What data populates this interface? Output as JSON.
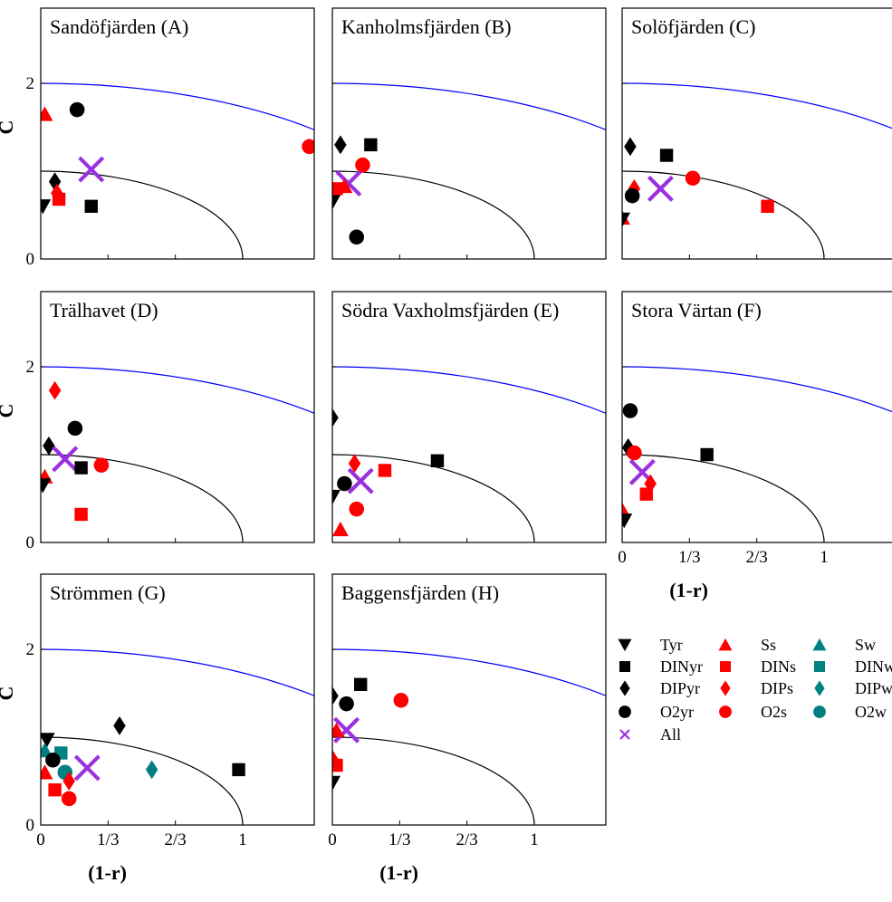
{
  "chart_data": {
    "type": "scatter",
    "axis": {
      "xlabel": "(1-r)",
      "ylabel": "C",
      "xlim": [
        0,
        1.45
      ],
      "ylim": [
        0,
        2.7
      ],
      "xticks": [
        0,
        0.3333,
        0.6667,
        1
      ],
      "xtick_labels": [
        "0",
        "1/3",
        "2/3",
        "1"
      ],
      "yticks": [
        0,
        2
      ],
      "ytick_labels": [
        "0",
        "2"
      ],
      "reference_arcs": [
        {
          "radius": 1,
          "color": "#000000"
        },
        {
          "radius": 2,
          "color": "#0000ff"
        }
      ]
    },
    "legend": {
      "placement": "bottom-right",
      "entries": [
        {
          "key": "Tyr",
          "label": "Tyr",
          "marker": "triangle-down",
          "color": "#000000"
        },
        {
          "key": "DINyr",
          "label": "DINyr",
          "marker": "square",
          "color": "#000000"
        },
        {
          "key": "DIPyr",
          "label": "DIPyr",
          "marker": "diamond",
          "color": "#000000"
        },
        {
          "key": "O2yr",
          "label": "O2yr",
          "marker": "circle",
          "color": "#000000"
        },
        {
          "key": "All",
          "label": "All",
          "marker": "cross",
          "color": "#9b30e0"
        },
        {
          "key": "Ss",
          "label": "Ss",
          "marker": "triangle-up",
          "color": "#ff0000"
        },
        {
          "key": "DINs",
          "label": "DINs",
          "marker": "square",
          "color": "#ff0000"
        },
        {
          "key": "DIPs",
          "label": "DIPs",
          "marker": "diamond",
          "color": "#ff0000"
        },
        {
          "key": "O2s",
          "label": "O2s",
          "marker": "circle",
          "color": "#ff0000"
        },
        {
          "key": "Sw",
          "label": "Sw",
          "marker": "triangle-up",
          "color": "#008080"
        },
        {
          "key": "DINw",
          "label": "DINw",
          "marker": "square",
          "color": "#008080"
        },
        {
          "key": "DIPw",
          "label": "DIPw",
          "marker": "diamond",
          "color": "#008080"
        },
        {
          "key": "O2w",
          "label": "O2w",
          "marker": "circle",
          "color": "#008080"
        }
      ]
    },
    "panels": [
      {
        "title": "Sandöfjärden (A)",
        "points": [
          {
            "series": "Ss",
            "x": 0.02,
            "y": 1.65
          },
          {
            "series": "O2yr",
            "x": 0.18,
            "y": 1.7
          },
          {
            "series": "O2s",
            "x": 1.33,
            "y": 1.28
          },
          {
            "series": "All",
            "x": 0.25,
            "y": 1.02
          },
          {
            "series": "DIPyr",
            "x": 0.07,
            "y": 0.88
          },
          {
            "series": "DIPs",
            "x": 0.08,
            "y": 0.75
          },
          {
            "series": "DINs",
            "x": 0.09,
            "y": 0.68
          },
          {
            "series": "DINyr",
            "x": 0.25,
            "y": 0.6
          },
          {
            "series": "Tyr",
            "x": 0.01,
            "y": 0.6
          }
        ]
      },
      {
        "title": "Kanholmsfjärden (B)",
        "points": [
          {
            "series": "DIPyr",
            "x": 0.04,
            "y": 1.3
          },
          {
            "series": "DINyr",
            "x": 0.19,
            "y": 1.3
          },
          {
            "series": "O2s",
            "x": 0.15,
            "y": 1.07
          },
          {
            "series": "All",
            "x": 0.08,
            "y": 0.86
          },
          {
            "series": "DINs",
            "x": 0.02,
            "y": 0.8
          },
          {
            "series": "Ss",
            "x": 0.06,
            "y": 0.83
          },
          {
            "series": "Tyr",
            "x": 0.0,
            "y": 0.65
          },
          {
            "series": "O2yr",
            "x": 0.12,
            "y": 0.25
          }
        ]
      },
      {
        "title": "Solöfjärden (C)",
        "points": [
          {
            "series": "DIPyr",
            "x": 0.04,
            "y": 1.28
          },
          {
            "series": "DINyr",
            "x": 0.22,
            "y": 1.18
          },
          {
            "series": "O2s",
            "x": 0.35,
            "y": 0.92
          },
          {
            "series": "All",
            "x": 0.19,
            "y": 0.8
          },
          {
            "series": "DIPs",
            "x": 0.06,
            "y": 0.8
          },
          {
            "series": "O2yr",
            "x": 0.05,
            "y": 0.72
          },
          {
            "series": "DINs",
            "x": 0.72,
            "y": 0.6
          },
          {
            "series": "Ss",
            "x": 0.0,
            "y": 0.47
          },
          {
            "series": "Tyr",
            "x": 0.0,
            "y": 0.45
          }
        ]
      },
      {
        "title": "Trälhavet (D)",
        "points": [
          {
            "series": "DIPs",
            "x": 0.07,
            "y": 1.73
          },
          {
            "series": "O2yr",
            "x": 0.17,
            "y": 1.3
          },
          {
            "series": "DIPyr",
            "x": 0.04,
            "y": 1.1
          },
          {
            "series": "All",
            "x": 0.12,
            "y": 0.95
          },
          {
            "series": "O2s",
            "x": 0.3,
            "y": 0.88
          },
          {
            "series": "DINyr",
            "x": 0.2,
            "y": 0.85
          },
          {
            "series": "Ss",
            "x": 0.02,
            "y": 0.75
          },
          {
            "series": "Tyr",
            "x": 0.01,
            "y": 0.65
          },
          {
            "series": "DINs",
            "x": 0.2,
            "y": 0.32
          }
        ]
      },
      {
        "title": "Södra Vaxholmsfjärden (E)",
        "points": [
          {
            "series": "DIPyr",
            "x": 0.0,
            "y": 1.42
          },
          {
            "series": "DINyr",
            "x": 0.52,
            "y": 0.93
          },
          {
            "series": "DIPs",
            "x": 0.11,
            "y": 0.9
          },
          {
            "series": "DINs",
            "x": 0.26,
            "y": 0.82
          },
          {
            "series": "All",
            "x": 0.14,
            "y": 0.7
          },
          {
            "series": "O2yr",
            "x": 0.06,
            "y": 0.67
          },
          {
            "series": "Tyr",
            "x": 0.0,
            "y": 0.52
          },
          {
            "series": "O2s",
            "x": 0.12,
            "y": 0.38
          },
          {
            "series": "Ss",
            "x": 0.04,
            "y": 0.15
          }
        ]
      },
      {
        "title": "Stora Värtan (F)",
        "points": [
          {
            "series": "O2yr",
            "x": 0.04,
            "y": 1.5
          },
          {
            "series": "DIPyr",
            "x": 0.03,
            "y": 1.08
          },
          {
            "series": "DINyr",
            "x": 0.42,
            "y": 1.0
          },
          {
            "series": "O2s",
            "x": 0.06,
            "y": 1.02
          },
          {
            "series": "All",
            "x": 0.1,
            "y": 0.8
          },
          {
            "series": "DIPs",
            "x": 0.14,
            "y": 0.67
          },
          {
            "series": "DINs",
            "x": 0.12,
            "y": 0.55
          },
          {
            "series": "Ss",
            "x": 0.0,
            "y": 0.37
          },
          {
            "series": "Tyr",
            "x": 0.01,
            "y": 0.25
          }
        ]
      },
      {
        "title": "Strömmen (G)",
        "points": [
          {
            "series": "DIPyr",
            "x": 0.39,
            "y": 1.13
          },
          {
            "series": "Tyr",
            "x": 0.03,
            "y": 0.97
          },
          {
            "series": "Sw",
            "x": 0.02,
            "y": 0.85
          },
          {
            "series": "DINw",
            "x": 0.1,
            "y": 0.82
          },
          {
            "series": "O2yr",
            "x": 0.06,
            "y": 0.74
          },
          {
            "series": "All",
            "x": 0.23,
            "y": 0.65
          },
          {
            "series": "DIPw",
            "x": 0.55,
            "y": 0.63
          },
          {
            "series": "DINyr",
            "x": 0.98,
            "y": 0.63
          },
          {
            "series": "Ss",
            "x": 0.02,
            "y": 0.6
          },
          {
            "series": "O2w",
            "x": 0.12,
            "y": 0.6
          },
          {
            "series": "DIPs",
            "x": 0.14,
            "y": 0.5
          },
          {
            "series": "DINs",
            "x": 0.07,
            "y": 0.4
          },
          {
            "series": "O2s",
            "x": 0.14,
            "y": 0.3
          }
        ]
      },
      {
        "title": "Baggensfjärden (H)",
        "points": [
          {
            "series": "DINyr",
            "x": 0.14,
            "y": 1.6
          },
          {
            "series": "DIPyr",
            "x": 0.0,
            "y": 1.47
          },
          {
            "series": "O2s",
            "x": 0.34,
            "y": 1.42
          },
          {
            "series": "O2yr",
            "x": 0.07,
            "y": 1.38
          },
          {
            "series": "All",
            "x": 0.07,
            "y": 1.08
          },
          {
            "series": "Ss",
            "x": 0.02,
            "y": 1.08
          },
          {
            "series": "DIPs",
            "x": 0.0,
            "y": 0.75
          },
          {
            "series": "DINs",
            "x": 0.02,
            "y": 0.68
          },
          {
            "series": "Tyr",
            "x": 0.0,
            "y": 0.48
          }
        ]
      }
    ]
  }
}
